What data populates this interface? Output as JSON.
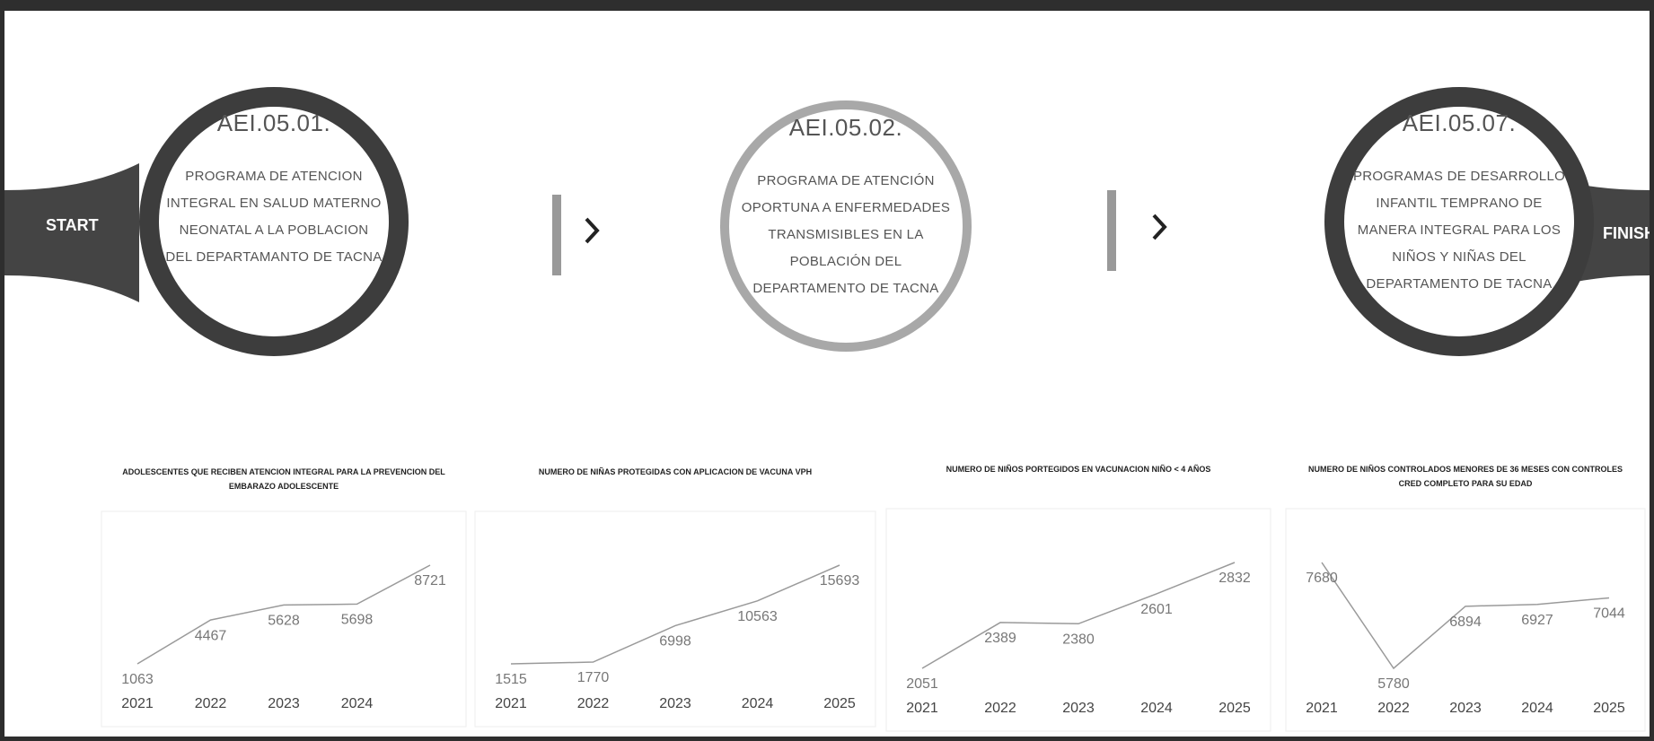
{
  "start_label": "START",
  "finish_label": "FINISH",
  "steps": [
    {
      "code": "AEI.05.01.",
      "text": "PROGRAMA DE ATENCION INTEGRAL EN SALUD MATERNO NEONATAL A LA POBLACION DEL DEPARTAMANTO DE TACNA"
    },
    {
      "code": "AEI.05.02.",
      "text": "PROGRAMA DE ATENCIÓN OPORTUNA A ENFERMEDADES TRANSMISIBLES EN LA POBLACIÓN DEL DEPARTAMENTO DE TACNA"
    },
    {
      "code": "AEI.05.07.",
      "text": "PROGRAMAS DE DESARROLLO INFANTIL TEMPRANO DE MANERA INTEGRAL PARA LOS NIÑOS Y NIÑAS DEL DEPARTAMENTO DE TACNA"
    }
  ],
  "chart_data": [
    {
      "type": "line",
      "title": "ADOLESCENTES QUE RECIBEN ATENCION INTEGRAL PARA LA PREVENCION DEL EMBARAZO ADOLESCENTE",
      "categories": [
        "2021",
        "2022",
        "2023",
        "2024",
        null
      ],
      "values": [
        1063,
        4467,
        5628,
        5698,
        8721
      ],
      "color": "#9a9a9a"
    },
    {
      "type": "line",
      "title": "NUMERO DE NIÑAS PROTEGIDAS CON APLICACION DE VACUNA VPH",
      "categories": [
        "2021",
        "2022",
        "2023",
        "2024",
        "2025"
      ],
      "values": [
        1515,
        1770,
        6998,
        10563,
        15693
      ],
      "color": "#9a9a9a"
    },
    {
      "type": "line",
      "title": "NUMERO DE NIÑOS PORTEGIDOS EN VACUNACION NIÑO < 4 AÑOS",
      "categories": [
        "2021",
        "2022",
        "2023",
        "2024",
        "2025"
      ],
      "values": [
        2051,
        2389,
        2380,
        2601,
        2832
      ],
      "color": "#9a9a9a"
    },
    {
      "type": "line",
      "title": "NUMERO DE NIÑOS CONTROLADOS MENORES DE 36 MESES CON CONTROLES CRED COMPLETO PARA SU EDAD",
      "categories": [
        "2021",
        "2022",
        "2023",
        "2024",
        "2025"
      ],
      "values": [
        7680,
        5780,
        6894,
        6927,
        7044
      ],
      "color": "#9a9a9a"
    }
  ]
}
